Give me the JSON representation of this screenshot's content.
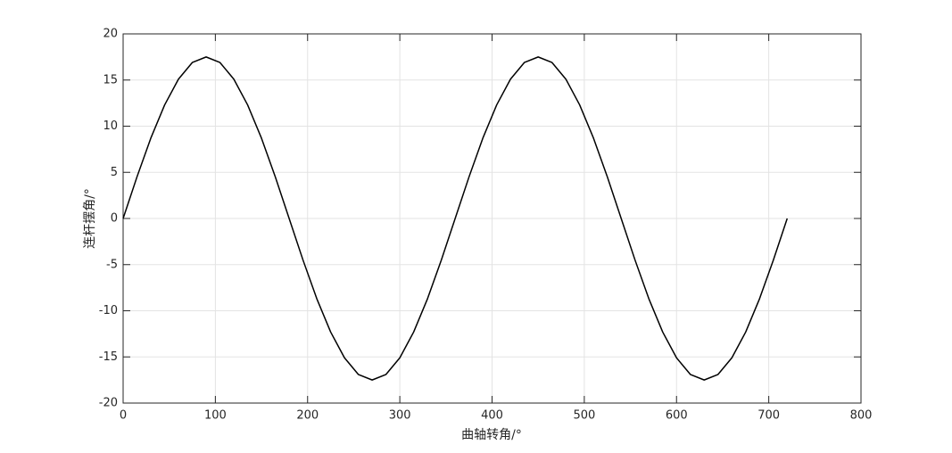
{
  "chart_data": {
    "type": "line",
    "xlabel": "曲轴转角/°",
    "ylabel": "连杆摆角/°",
    "x": [
      0,
      15,
      30,
      45,
      60,
      75,
      90,
      105,
      120,
      135,
      150,
      165,
      180,
      195,
      210,
      225,
      240,
      255,
      270,
      285,
      300,
      315,
      330,
      345,
      360,
      375,
      390,
      405,
      420,
      435,
      450,
      465,
      480,
      495,
      510,
      525,
      540,
      555,
      570,
      585,
      600,
      615,
      630,
      645,
      660,
      675,
      690,
      705,
      720
    ],
    "values": [
      0,
      4.5,
      8.7,
      12.3,
      15.1,
      16.9,
      17.5,
      16.9,
      15.1,
      12.3,
      8.7,
      4.5,
      0,
      -4.5,
      -8.7,
      -12.3,
      -15.1,
      -16.9,
      -17.5,
      -16.9,
      -15.1,
      -12.3,
      -8.7,
      -4.5,
      0,
      4.5,
      8.7,
      12.3,
      15.1,
      16.9,
      17.5,
      16.9,
      15.1,
      12.3,
      8.7,
      4.5,
      0,
      -4.5,
      -8.7,
      -12.3,
      -15.1,
      -16.9,
      -17.5,
      -16.9,
      -15.1,
      -12.3,
      -8.7,
      -4.5,
      0
    ],
    "color": "#000000",
    "xlim": [
      0,
      800
    ],
    "xticks": [
      0,
      100,
      200,
      300,
      400,
      500,
      600,
      700,
      800
    ],
    "ylim": [
      -20,
      20
    ],
    "yticks": [
      -20,
      -15,
      -10,
      -5,
      0,
      5,
      10,
      15,
      20
    ],
    "grid": true
  }
}
